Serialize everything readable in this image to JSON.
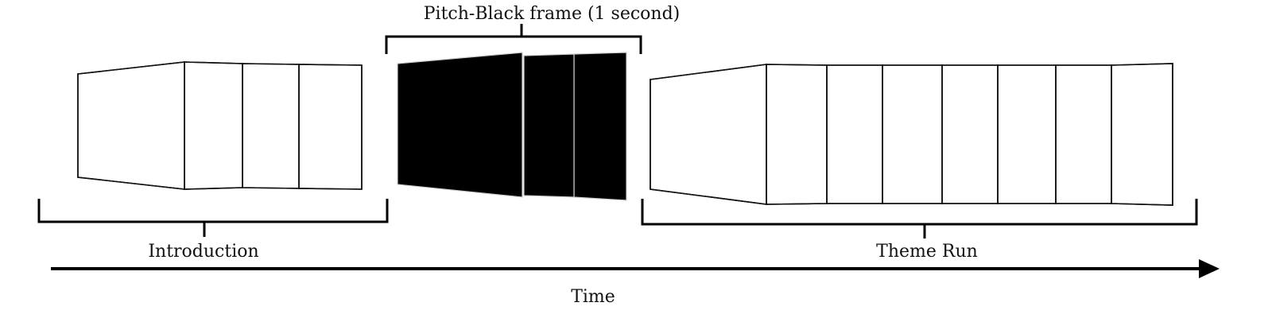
{
  "labels": {
    "pitch_black": "Pitch-Black frame (1 second)",
    "introduction": "Introduction",
    "theme_run": "Theme Run",
    "time": "Time"
  },
  "colors": {
    "bracket": "#000000",
    "frame_border": "#111111",
    "black_frame": "#000000",
    "skin": "#f2b98f",
    "hair": "#9b4a2a",
    "shirt": "#6ec6dc",
    "ring": "#2fa36b",
    "ring_inner": "#c9ecd7",
    "hatch": "#333333"
  },
  "groups": {
    "introduction_frames": 4,
    "black_frames": 3,
    "theme_frames": 8
  }
}
